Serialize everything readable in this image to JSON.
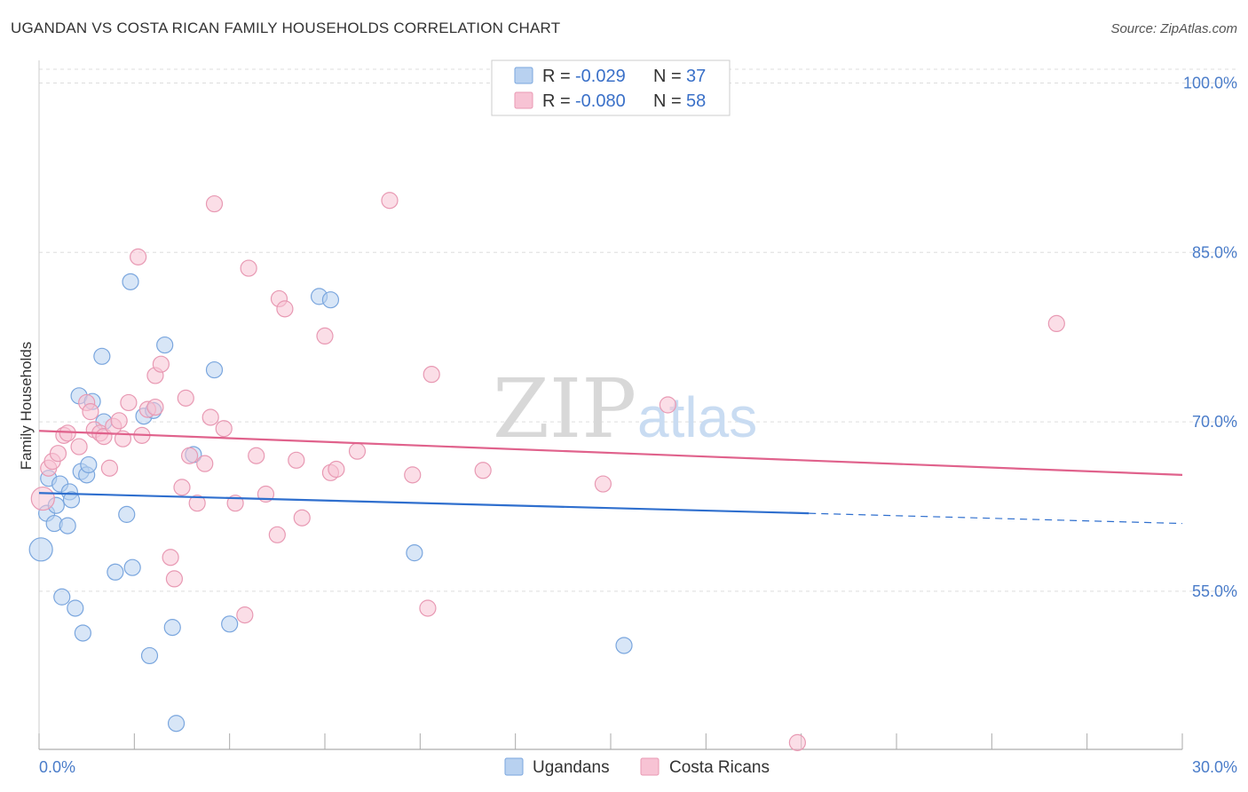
{
  "title": "UGANDAN VS COSTA RICAN FAMILY HOUSEHOLDS CORRELATION CHART",
  "source": "Source: ZipAtlas.com",
  "watermark": {
    "zip": "ZIP",
    "atlas": "atlas"
  },
  "legend": {
    "rows": [
      {
        "r_label": "R =",
        "r_value": "-0.029",
        "n_label": "N =",
        "n_value": "37"
      },
      {
        "r_label": "R =",
        "r_value": "-0.080",
        "n_label": "N =",
        "n_value": "58"
      }
    ]
  },
  "bottom_legend": [
    "Ugandans",
    "Costa Ricans"
  ],
  "colors": {
    "blue_fill": "#b8d1f0",
    "blue_stroke": "#7aa6de",
    "blue_line": "#2f6fce",
    "pink_fill": "#f7c3d4",
    "pink_stroke": "#e899b3",
    "pink_line": "#e0628c",
    "grid": "#dddddd",
    "tick_text": "#4a7cc9"
  },
  "chart_data": {
    "type": "scatter",
    "title": "UGANDAN VS COSTA RICAN FAMILY HOUSEHOLDS CORRELATION CHART",
    "xlabel": "",
    "ylabel": "Family Households",
    "xlim": [
      0,
      30
    ],
    "ylim": [
      41,
      102
    ],
    "x_tick_labels": [
      "0.0%",
      "30.0%"
    ],
    "y_ticks": [
      55,
      70,
      85,
      100
    ],
    "y_tick_labels": [
      "55.0%",
      "70.0%",
      "85.0%",
      "100.0%"
    ],
    "series": [
      {
        "name": "Ugandans",
        "r": -0.029,
        "n": 37,
        "trend": {
          "x0": 0,
          "y0": 63.7,
          "x1": 20.2,
          "y1": 61.9,
          "dash_to_x": 30,
          "dash_to_y": 61.0
        },
        "points": [
          {
            "x": 0.05,
            "y": 58.7,
            "big": true
          },
          {
            "x": 0.2,
            "y": 61.9
          },
          {
            "x": 0.25,
            "y": 65.0
          },
          {
            "x": 0.4,
            "y": 61.0
          },
          {
            "x": 0.45,
            "y": 62.6
          },
          {
            "x": 0.55,
            "y": 64.5
          },
          {
            "x": 0.6,
            "y": 54.5
          },
          {
            "x": 0.75,
            "y": 60.8
          },
          {
            "x": 0.8,
            "y": 63.8
          },
          {
            "x": 0.85,
            "y": 63.1
          },
          {
            "x": 0.95,
            "y": 53.5
          },
          {
            "x": 1.05,
            "y": 72.3
          },
          {
            "x": 1.1,
            "y": 65.6
          },
          {
            "x": 1.15,
            "y": 51.3
          },
          {
            "x": 1.25,
            "y": 65.3
          },
          {
            "x": 1.3,
            "y": 66.2
          },
          {
            "x": 1.4,
            "y": 71.8
          },
          {
            "x": 1.65,
            "y": 75.8
          },
          {
            "x": 1.7,
            "y": 70.0
          },
          {
            "x": 2.0,
            "y": 56.7
          },
          {
            "x": 2.3,
            "y": 61.8
          },
          {
            "x": 2.4,
            "y": 82.4
          },
          {
            "x": 2.45,
            "y": 57.1
          },
          {
            "x": 2.75,
            "y": 70.5
          },
          {
            "x": 2.9,
            "y": 49.3
          },
          {
            "x": 3.0,
            "y": 71.0
          },
          {
            "x": 3.3,
            "y": 76.8
          },
          {
            "x": 3.5,
            "y": 51.8
          },
          {
            "x": 3.6,
            "y": 43.3
          },
          {
            "x": 4.05,
            "y": 67.1
          },
          {
            "x": 4.6,
            "y": 74.6
          },
          {
            "x": 5.0,
            "y": 52.1
          },
          {
            "x": 7.35,
            "y": 81.1
          },
          {
            "x": 7.65,
            "y": 80.8
          },
          {
            "x": 9.85,
            "y": 58.4
          },
          {
            "x": 15.35,
            "y": 50.2
          }
        ]
      },
      {
        "name": "Costa Ricans",
        "r": -0.08,
        "n": 58,
        "trend": {
          "x0": 0,
          "y0": 69.2,
          "x1": 30,
          "y1": 65.3
        },
        "points": [
          {
            "x": 0.1,
            "y": 63.2,
            "big": true
          },
          {
            "x": 0.25,
            "y": 65.9
          },
          {
            "x": 0.35,
            "y": 66.5
          },
          {
            "x": 0.5,
            "y": 67.2
          },
          {
            "x": 0.65,
            "y": 68.8
          },
          {
            "x": 0.75,
            "y": 69.0
          },
          {
            "x": 1.05,
            "y": 67.8
          },
          {
            "x": 1.25,
            "y": 71.7
          },
          {
            "x": 1.35,
            "y": 70.9
          },
          {
            "x": 1.45,
            "y": 69.3
          },
          {
            "x": 1.6,
            "y": 69.0
          },
          {
            "x": 1.7,
            "y": 68.7
          },
          {
            "x": 1.85,
            "y": 65.9
          },
          {
            "x": 1.95,
            "y": 69.6
          },
          {
            "x": 2.1,
            "y": 70.1
          },
          {
            "x": 2.2,
            "y": 68.5
          },
          {
            "x": 2.35,
            "y": 71.7
          },
          {
            "x": 2.6,
            "y": 84.6
          },
          {
            "x": 2.7,
            "y": 68.8
          },
          {
            "x": 2.85,
            "y": 71.1
          },
          {
            "x": 3.05,
            "y": 71.3
          },
          {
            "x": 3.05,
            "y": 74.1
          },
          {
            "x": 3.2,
            "y": 75.1
          },
          {
            "x": 3.45,
            "y": 58.0
          },
          {
            "x": 3.55,
            "y": 56.1
          },
          {
            "x": 3.75,
            "y": 64.2
          },
          {
            "x": 3.85,
            "y": 72.1
          },
          {
            "x": 3.95,
            "y": 67.0
          },
          {
            "x": 4.15,
            "y": 62.8
          },
          {
            "x": 4.35,
            "y": 66.3
          },
          {
            "x": 4.5,
            "y": 70.4
          },
          {
            "x": 4.6,
            "y": 89.3
          },
          {
            "x": 4.85,
            "y": 69.4
          },
          {
            "x": 5.15,
            "y": 62.8
          },
          {
            "x": 5.4,
            "y": 52.9
          },
          {
            "x": 5.5,
            "y": 83.6
          },
          {
            "x": 5.7,
            "y": 67.0
          },
          {
            "x": 5.95,
            "y": 63.6
          },
          {
            "x": 6.25,
            "y": 60.0
          },
          {
            "x": 6.3,
            "y": 80.9
          },
          {
            "x": 6.45,
            "y": 80.0
          },
          {
            "x": 6.75,
            "y": 66.6
          },
          {
            "x": 6.9,
            "y": 61.5
          },
          {
            "x": 7.5,
            "y": 77.6
          },
          {
            "x": 7.65,
            "y": 65.5
          },
          {
            "x": 7.8,
            "y": 65.8
          },
          {
            "x": 8.35,
            "y": 67.4
          },
          {
            "x": 9.2,
            "y": 89.6
          },
          {
            "x": 9.8,
            "y": 65.3
          },
          {
            "x": 10.2,
            "y": 53.5
          },
          {
            "x": 10.3,
            "y": 74.2
          },
          {
            "x": 11.65,
            "y": 65.7
          },
          {
            "x": 14.8,
            "y": 64.5
          },
          {
            "x": 16.5,
            "y": 71.5
          },
          {
            "x": 19.9,
            "y": 41.6
          },
          {
            "x": 26.7,
            "y": 78.7
          }
        ]
      }
    ]
  }
}
